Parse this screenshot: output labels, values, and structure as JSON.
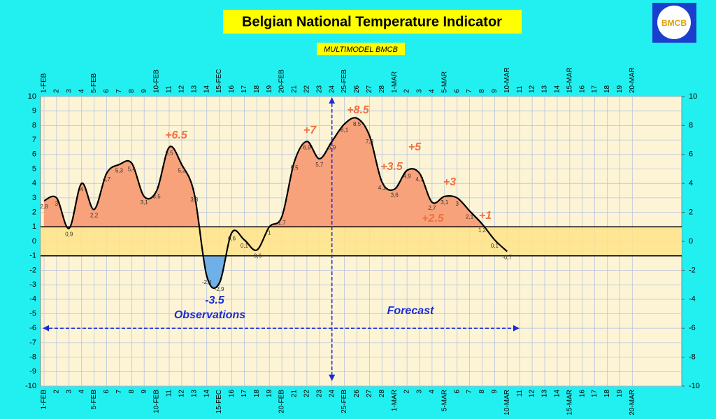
{
  "chart_data": {
    "type": "line",
    "title": "Belgian National Temperature Indicator",
    "subtitle": "MULTIMODEL BMCB",
    "logo": "BMCB",
    "categories": [
      "1-FEB",
      "2",
      "3",
      "4",
      "5-FEB",
      "6",
      "7",
      "8",
      "9",
      "10-FEB",
      "11",
      "12",
      "13",
      "14",
      "15-FEC",
      "16",
      "17",
      "18",
      "19",
      "20-FEB",
      "21",
      "22",
      "23",
      "24",
      "25-FEB",
      "26",
      "27",
      "28",
      "1-MAR",
      "2",
      "3",
      "4",
      "5-MAR",
      "6",
      "7",
      "8",
      "9",
      "10-MAR",
      "11",
      "12",
      "13",
      "14",
      "15-MAR",
      "16",
      "17",
      "18",
      "19",
      "20-MAR"
    ],
    "series": [
      {
        "color": "#000000",
        "values": [
          2.8,
          3,
          0.9,
          4,
          2.2,
          4.7,
          5.3,
          5.4,
          3.1,
          3.5,
          6.5,
          5.3,
          3.3,
          -2.4,
          -2.9,
          0.6,
          0.1,
          -0.6,
          1,
          1.7,
          5.5,
          6.9,
          5.7,
          6.9,
          8.1,
          8.5,
          7.3,
          4.1,
          3.6,
          4.9,
          4.7,
          2.7,
          3.1,
          3,
          2.1,
          1.2,
          0.1,
          -0.7,
          null,
          null,
          null,
          null,
          null,
          null,
          null,
          null,
          null,
          null
        ],
        "value_labels": [
          "2,8",
          "3",
          "0,9",
          "4",
          "2,2",
          "4,7",
          "5,3",
          "5,4",
          "3,1",
          "3,5",
          "6,5",
          "5,3",
          "3,3",
          "-2,4",
          "-2,9",
          "0,6",
          "0,1",
          "-0,6",
          "1",
          "1,7",
          "5,5",
          "6,9",
          "5,7",
          "6,9",
          "8,1",
          "8,5",
          "7,3",
          "4,1",
          "3,6",
          "4,9",
          "4,7",
          "2,7",
          "3,1",
          "3",
          "2,1",
          "1,2",
          "0,1",
          "-0,7",
          null,
          null,
          null,
          null,
          null,
          null,
          null,
          null,
          null,
          null
        ]
      }
    ],
    "ylim": [
      -10,
      10
    ],
    "yticks": [
      -10,
      -9,
      -8,
      -7,
      -6,
      -5,
      -4,
      -3,
      -2,
      -1,
      0,
      1,
      2,
      3,
      4,
      5,
      6,
      7,
      8,
      9,
      10
    ],
    "y2lim": [
      -10,
      10
    ],
    "y2ticks": [
      -10,
      -8,
      -6,
      -4,
      -2,
      0,
      2,
      4,
      6,
      8,
      10
    ],
    "normal_band": [
      -1,
      1
    ],
    "grid": true,
    "annotations": [
      "+6.5",
      "+7",
      "+8.5",
      "+3.5",
      "+5",
      "+3",
      "+2.5",
      "+1",
      "-3.5",
      "Observations",
      "Forecast"
    ]
  }
}
